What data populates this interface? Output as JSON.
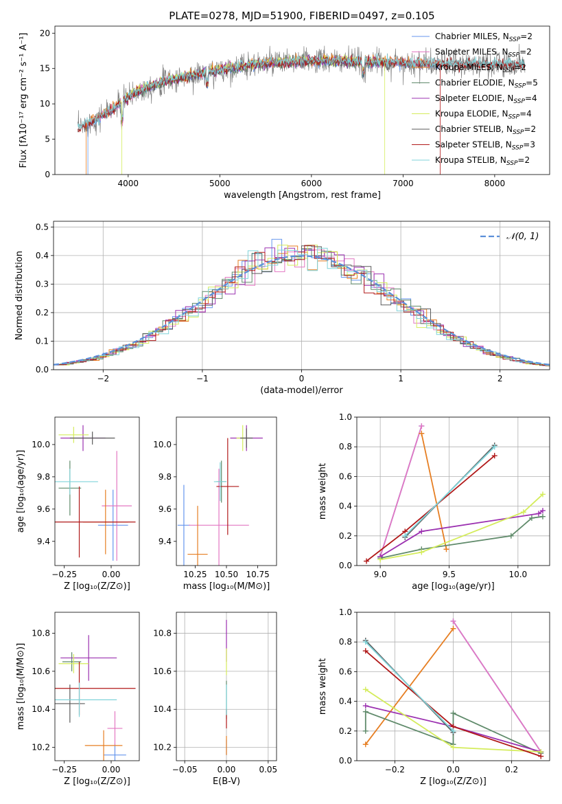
{
  "colors": {
    "chabrier_miles": "#6495ed",
    "salpeter_miles": "#e377c2",
    "kroupa_miles": "#e67e22",
    "chabrier_elodie": "#5f8a6a",
    "salpeter_elodie": "#9b30b0",
    "kroupa_elodie": "#d4ec5a",
    "chabrier_stelib": "#5a5a5a",
    "salpeter_stelib": "#b01818",
    "kroupa_stelib": "#7fd3d9"
  },
  "chart_data": [
    {
      "id": "spectrum",
      "type": "line",
      "title": "PLATE=0278, MJD=51900, FIBERID=0497, z=0.105",
      "xlabel": "wavelength [Angstrom, rest frame]",
      "ylabel": "Flux [fλ10⁻¹⁷ erg cm⁻² s⁻¹ A⁻¹]",
      "xlim": [
        3200,
        8600
      ],
      "ylim": [
        0,
        21
      ],
      "xticks": [
        4000,
        5000,
        6000,
        7000,
        8000
      ],
      "xtick_labels": [
        "4000",
        "5000",
        "6000",
        "7000",
        "8000"
      ],
      "yticks": [
        0,
        5,
        10,
        15,
        20
      ],
      "ytick_labels": [
        "0",
        "5",
        "10",
        "15",
        "20"
      ],
      "grid": false,
      "legend_position": "right",
      "data_profile": {
        "wavelength": [
          3450,
          3600,
          3800,
          3950,
          4100,
          4400,
          4700,
          5000,
          5300,
          5600,
          6000,
          6500,
          7000,
          7500,
          8000,
          8300
        ],
        "flux": [
          6.5,
          7.5,
          9.0,
          10.5,
          11.8,
          13.2,
          14.0,
          14.8,
          15.5,
          15.8,
          16.1,
          16.0,
          15.8,
          15.6,
          15.6,
          15.6
        ]
      },
      "legend": [
        {
          "name": "Chabrier MILES, N",
          "sub": "SSP",
          "tail": "=2",
          "color_key": "chabrier_miles"
        },
        {
          "name": "Salpeter MILES, N",
          "sub": "SSP",
          "tail": "=2",
          "color_key": "salpeter_miles"
        },
        {
          "name": "Kroupa MILES, N",
          "sub": "SSP",
          "tail": "=2",
          "color_key": "kroupa_miles"
        },
        {
          "name": "Chabrier ELODIE, N",
          "sub": "SSP",
          "tail": "=5",
          "color_key": "chabrier_elodie"
        },
        {
          "name": "Salpeter ELODIE, N",
          "sub": "SSP",
          "tail": "=4",
          "color_key": "salpeter_elodie"
        },
        {
          "name": "Kroupa ELODIE, N",
          "sub": "SSP",
          "tail": "=4",
          "color_key": "kroupa_elodie"
        },
        {
          "name": "Chabrier STELIB, N",
          "sub": "SSP",
          "tail": "=2",
          "color_key": "chabrier_stelib"
        },
        {
          "name": "Salpeter STELIB, N",
          "sub": "SSP",
          "tail": "=3",
          "color_key": "salpeter_stelib"
        },
        {
          "name": "Kroupa STELIB, N",
          "sub": "SSP",
          "tail": "=2",
          "color_key": "kroupa_stelib"
        }
      ]
    },
    {
      "id": "residuals",
      "type": "step-histogram",
      "xlabel": "(data-model)/error",
      "ylabel": "Normed distribution",
      "xlim": [
        -2.5,
        2.5
      ],
      "ylim": [
        0,
        0.52
      ],
      "xticks": [
        -2,
        -1,
        0,
        1,
        2
      ],
      "xtick_labels": [
        "−2",
        "−1",
        "0",
        "1",
        "2"
      ],
      "yticks": [
        0,
        0.1,
        0.2,
        0.3,
        0.4,
        0.5
      ],
      "ytick_labels": [
        "0.0",
        "0.1",
        "0.2",
        "0.3",
        "0.4",
        "0.5"
      ],
      "grid": true,
      "legend_position": "top-right",
      "bin_width": 0.1,
      "reference_curve": {
        "label": "𝒩(0, 1)",
        "color": "#5b8fd9",
        "style": "dashed",
        "mean": 0,
        "sigma": 1
      }
    },
    {
      "id": "age_vs_z",
      "type": "errorbar",
      "xlabel": "Z [log₁₀(Z/Z⊙)]",
      "ylabel": "age  [log₁₀(age/yr)]",
      "xlim": [
        -0.3,
        0.15
      ],
      "ylim": [
        9.25,
        10.17
      ],
      "xticks": [
        -0.25,
        0.0
      ],
      "xtick_labels": [
        "−0.25",
        "0.00"
      ],
      "yticks": [
        9.4,
        9.6,
        9.8,
        10.0
      ],
      "ytick_labels": [
        "9.4",
        "9.6",
        "9.8",
        "10.0"
      ],
      "grid": false,
      "points": [
        {
          "color_key": "chabrier_miles",
          "x": 0.01,
          "xerr": 0.08,
          "y": 9.5,
          "yerr": 0.22
        },
        {
          "color_key": "salpeter_miles",
          "x": 0.03,
          "xerr": 0.08,
          "y": 9.62,
          "yerr": 0.34
        },
        {
          "color_key": "kroupa_miles",
          "x": -0.03,
          "xerr": 0.12,
          "y": 9.52,
          "yerr": 0.2
        },
        {
          "color_key": "chabrier_elodie",
          "x": -0.22,
          "xerr": 0.06,
          "y": 9.73,
          "yerr": 0.17
        },
        {
          "color_key": "salpeter_elodie",
          "x": -0.15,
          "xerr": 0.12,
          "y": 10.04,
          "yerr": 0.08
        },
        {
          "color_key": "kroupa_elodie",
          "x": -0.2,
          "xerr": 0.08,
          "y": 10.06,
          "yerr": 0.05
        },
        {
          "color_key": "chabrier_stelib",
          "x": -0.1,
          "xerr": 0.12,
          "y": 10.04,
          "yerr": 0.04
        },
        {
          "color_key": "salpeter_stelib",
          "x": -0.17,
          "xerr": 0.3,
          "y": 9.52,
          "yerr": 0.22
        },
        {
          "color_key": "kroupa_stelib",
          "x": -0.22,
          "xerr": 0.15,
          "y": 9.77,
          "yerr": 0.08
        }
      ]
    },
    {
      "id": "age_vs_mass",
      "type": "errorbar",
      "xlabel": "mass [log₁₀(M/M⊙)]",
      "ylabel": "",
      "xlim": [
        10.1,
        10.9
      ],
      "ylim": [
        9.25,
        10.17
      ],
      "xticks": [
        10.25,
        10.5,
        10.75
      ],
      "xtick_labels": [
        "10.25",
        "10.50",
        "10.75"
      ],
      "yticks": [
        9.4,
        9.6,
        9.8,
        10.0
      ],
      "ytick_labels": [
        "9.4",
        "9.6",
        "9.8",
        "10.0"
      ],
      "grid": false,
      "points": [
        {
          "color_key": "chabrier_miles",
          "x": 10.16,
          "xerr": 0.05,
          "y": 9.5,
          "yerr": 0.25
        },
        {
          "color_key": "salpeter_miles",
          "x": 10.44,
          "xerr": 0.24,
          "y": 9.5,
          "yerr": 0.35
        },
        {
          "color_key": "kroupa_miles",
          "x": 10.27,
          "xerr": 0.08,
          "y": 9.32,
          "yerr": 0.3
        },
        {
          "color_key": "chabrier_elodie",
          "x": 10.46,
          "xerr": 0.04,
          "y": 9.77,
          "yerr": 0.13
        },
        {
          "color_key": "salpeter_elodie",
          "x": 10.66,
          "xerr": 0.13,
          "y": 10.04,
          "yerr": 0.08
        },
        {
          "color_key": "kroupa_elodie",
          "x": 10.63,
          "xerr": 0.05,
          "y": 10.04,
          "yerr": 0.08
        },
        {
          "color_key": "chabrier_stelib",
          "x": 10.66,
          "xerr": 0.05,
          "y": 10.04,
          "yerr": 0.06
        },
        {
          "color_key": "salpeter_stelib",
          "x": 10.51,
          "xerr": 0.09,
          "y": 9.74,
          "yerr": 0.3
        },
        {
          "color_key": "kroupa_stelib",
          "x": 10.45,
          "xerr": 0.05,
          "y": 9.77,
          "yerr": 0.12
        }
      ]
    },
    {
      "id": "mass_weight_vs_age",
      "type": "line",
      "xlabel": "age  [log₁₀(age/yr)]",
      "ylabel": "mass weight",
      "xlim": [
        8.83,
        10.23
      ],
      "ylim": [
        0,
        1
      ],
      "xticks": [
        9.0,
        9.5,
        10.0
      ],
      "xtick_labels": [
        "9.0",
        "9.5",
        "10.0"
      ],
      "yticks": [
        0,
        0.2,
        0.4,
        0.6,
        0.8,
        1.0
      ],
      "ytick_labels": [
        "0.0",
        "0.2",
        "0.4",
        "0.6",
        "0.8",
        "1.0"
      ],
      "grid": true,
      "series": [
        {
          "color_key": "chabrier_miles",
          "x": [
            9.0,
            9.3
          ],
          "y": [
            0.06,
            0.94
          ]
        },
        {
          "color_key": "salpeter_miles",
          "x": [
            9.0,
            9.3
          ],
          "y": [
            0.06,
            0.94
          ]
        },
        {
          "color_key": "kroupa_miles",
          "x": [
            9.3,
            9.48
          ],
          "y": [
            0.89,
            0.11
          ]
        },
        {
          "color_key": "chabrier_elodie",
          "x": [
            9.0,
            9.3,
            9.95,
            10.1,
            10.18
          ],
          "y": [
            0.05,
            0.11,
            0.2,
            0.32,
            0.33
          ]
        },
        {
          "color_key": "salpeter_elodie",
          "x": [
            9.0,
            9.3,
            10.15,
            10.18
          ],
          "y": [
            0.06,
            0.23,
            0.35,
            0.37
          ]
        },
        {
          "color_key": "kroupa_elodie",
          "x": [
            9.0,
            9.3,
            10.04,
            10.18
          ],
          "y": [
            0.04,
            0.09,
            0.36,
            0.48
          ]
        },
        {
          "color_key": "chabrier_stelib",
          "x": [
            9.18,
            9.83
          ],
          "y": [
            0.19,
            0.81
          ]
        },
        {
          "color_key": "salpeter_stelib",
          "x": [
            8.9,
            9.18,
            9.83
          ],
          "y": [
            0.03,
            0.23,
            0.74
          ]
        },
        {
          "color_key": "kroupa_stelib",
          "x": [
            9.18,
            9.83
          ],
          "y": [
            0.2,
            0.8
          ]
        }
      ]
    },
    {
      "id": "mass_vs_z",
      "type": "errorbar",
      "xlabel": "Z [log₁₀(Z/Z⊙)]",
      "ylabel": "mass [log₁₀(M/M⊙)]",
      "xlim": [
        -0.3,
        0.15
      ],
      "ylim": [
        10.13,
        10.91
      ],
      "xticks": [
        -0.25,
        0.0
      ],
      "xtick_labels": [
        "−0.25",
        "0.00"
      ],
      "yticks": [
        10.2,
        10.4,
        10.6,
        10.8
      ],
      "ytick_labels": [
        "10.2",
        "10.4",
        "10.6",
        "10.8"
      ],
      "grid": false,
      "points": [
        {
          "color_key": "chabrier_miles",
          "x": 0.02,
          "xerr": 0.06,
          "y": 10.16,
          "yerr": 0.06
        },
        {
          "color_key": "salpeter_miles",
          "x": 0.02,
          "xerr": 0.04,
          "y": 10.3,
          "yerr": 0.09
        },
        {
          "color_key": "kroupa_miles",
          "x": -0.04,
          "xerr": 0.1,
          "y": 10.21,
          "yerr": 0.08
        },
        {
          "color_key": "chabrier_elodie",
          "x": -0.21,
          "xerr": 0.05,
          "y": 10.65,
          "yerr": 0.05
        },
        {
          "color_key": "salpeter_elodie",
          "x": -0.12,
          "xerr": 0.15,
          "y": 10.67,
          "yerr": 0.12
        },
        {
          "color_key": "kroupa_elodie",
          "x": -0.2,
          "xerr": 0.08,
          "y": 10.64,
          "yerr": 0.05
        },
        {
          "color_key": "chabrier_stelib",
          "x": -0.22,
          "xerr": 0.08,
          "y": 10.43,
          "yerr": 0.1
        },
        {
          "color_key": "salpeter_stelib",
          "x": -0.17,
          "xerr": 0.3,
          "y": 10.51,
          "yerr": 0.14
        },
        {
          "color_key": "kroupa_stelib",
          "x": -0.17,
          "xerr": 0.2,
          "y": 10.45,
          "yerr": 0.09
        }
      ]
    },
    {
      "id": "mass_vs_ebv",
      "type": "errorbar",
      "xlabel": "E(B-V)",
      "ylabel": "",
      "xlim": [
        -0.06,
        0.06
      ],
      "ylim": [
        10.13,
        10.91
      ],
      "xticks": [
        -0.05,
        0.0,
        0.05
      ],
      "xtick_labels": [
        "−0.05",
        "0.00",
        "0.05"
      ],
      "yticks": [
        10.2,
        10.4,
        10.6,
        10.8
      ],
      "ytick_labels": [
        "10.2",
        "10.4",
        "10.6",
        "10.8"
      ],
      "grid": true,
      "points": [
        {
          "color_key": "chabrier_miles",
          "x": 0.0,
          "xerr": 0.0,
          "y": 10.2,
          "yerr": 0.04
        },
        {
          "color_key": "kroupa_miles",
          "x": 0.0,
          "xerr": 0.0,
          "y": 10.21,
          "yerr": 0.05
        },
        {
          "color_key": "salpeter_elodie",
          "x": 0.0,
          "xerr": 0.0,
          "y": 10.76,
          "yerr": 0.11
        },
        {
          "color_key": "kroupa_elodie",
          "x": 0.0,
          "xerr": 0.0,
          "y": 10.65,
          "yerr": 0.07
        },
        {
          "color_key": "chabrier_elodie",
          "x": 0.0,
          "xerr": 0.0,
          "y": 10.45,
          "yerr": 0.1
        },
        {
          "color_key": "salpeter_stelib",
          "x": 0.0,
          "xerr": 0.0,
          "y": 10.35,
          "yerr": 0.05
        },
        {
          "color_key": "kroupa_stelib",
          "x": 0.0,
          "xerr": 0.0,
          "y": 10.45,
          "yerr": 0.08
        }
      ]
    },
    {
      "id": "mass_weight_vs_z",
      "type": "line",
      "xlabel": "Z [log₁₀(Z/Z⊙)]",
      "ylabel": "mass weight",
      "xlim": [
        -0.33,
        0.33
      ],
      "ylim": [
        0,
        1
      ],
      "xticks": [
        -0.2,
        0.0,
        0.2
      ],
      "xtick_labels": [
        "−0.2",
        "0.0",
        "0.2"
      ],
      "yticks": [
        0,
        0.2,
        0.4,
        0.6,
        0.8,
        1.0
      ],
      "ytick_labels": [
        "0.0",
        "0.2",
        "0.4",
        "0.6",
        "0.8",
        "1.0"
      ],
      "grid": true,
      "series": [
        {
          "color_key": "chabrier_miles",
          "x": [
            0.0,
            0.3
          ],
          "y": [
            0.94,
            0.06
          ]
        },
        {
          "color_key": "salpeter_miles",
          "x": [
            0.0,
            0.3
          ],
          "y": [
            0.94,
            0.06
          ]
        },
        {
          "color_key": "kroupa_miles",
          "x": [
            -0.3,
            0.0
          ],
          "y": [
            0.11,
            0.89
          ]
        },
        {
          "color_key": "chabrier_elodie",
          "x": [
            -0.3,
            -0.3,
            0.0,
            0.0,
            0.3
          ],
          "y": [
            0.2,
            0.33,
            0.11,
            0.32,
            0.05
          ]
        },
        {
          "color_key": "salpeter_elodie",
          "x": [
            -0.3,
            0.0,
            0.3
          ],
          "y": [
            0.37,
            0.23,
            0.06
          ]
        },
        {
          "color_key": "kroupa_elodie",
          "x": [
            -0.3,
            0.0,
            0.3
          ],
          "y": [
            0.48,
            0.09,
            0.06
          ]
        },
        {
          "color_key": "chabrier_stelib",
          "x": [
            -0.3,
            0.0
          ],
          "y": [
            0.81,
            0.19
          ]
        },
        {
          "color_key": "salpeter_stelib",
          "x": [
            -0.3,
            0.0,
            0.3
          ],
          "y": [
            0.74,
            0.23,
            0.03
          ]
        },
        {
          "color_key": "kroupa_stelib",
          "x": [
            -0.3,
            0.0
          ],
          "y": [
            0.8,
            0.2
          ]
        }
      ]
    }
  ]
}
